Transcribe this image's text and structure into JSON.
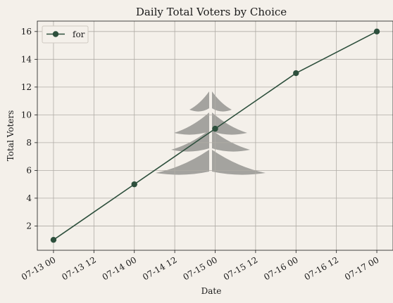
{
  "chart_data": {
    "type": "line",
    "title": "Daily Total Voters by Choice",
    "xlabel": "Date",
    "ylabel": "Total Voters",
    "x_ticks": [
      "07-13 00",
      "07-13 12",
      "07-14 00",
      "07-14 12",
      "07-15 00",
      "07-15 12",
      "07-16 00",
      "07-16 12",
      "07-17 00"
    ],
    "y_ticks": [
      2,
      4,
      6,
      8,
      10,
      12,
      14,
      16
    ],
    "x": [
      "2024-07-13",
      "2024-07-14",
      "2024-07-15",
      "2024-07-16",
      "2024-07-17"
    ],
    "ylim": [
      0.25,
      16.75
    ],
    "grid": true,
    "legend": "top-left",
    "series": [
      {
        "name": "for",
        "values": [
          1,
          5,
          9,
          13,
          16
        ],
        "color": "#2d4f3c"
      }
    ],
    "watermark_color": "#8a8a86"
  }
}
